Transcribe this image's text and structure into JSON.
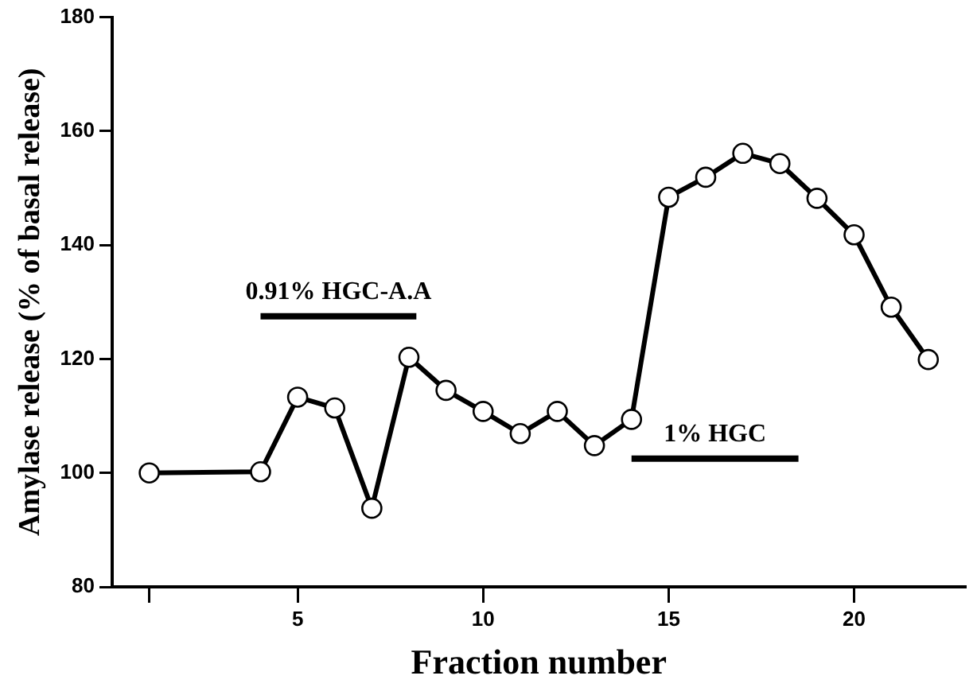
{
  "chart_data": {
    "type": "line",
    "xlabel": "Fraction number",
    "ylabel": "Amylase release (% of basal release)",
    "x": [
      1,
      4,
      5,
      6,
      7,
      8,
      9,
      10,
      11,
      12,
      13,
      14,
      15,
      16,
      17,
      18,
      19,
      20,
      21,
      22
    ],
    "series": [
      {
        "color": "#000000",
        "values": [
          100,
          100.2,
          113.3,
          111.4,
          93.8,
          120.3,
          114.5,
          110.8,
          106.9,
          110.8,
          104.8,
          109.4,
          148.4,
          151.9,
          156.1,
          154.3,
          148.2,
          141.8,
          129.1,
          119.9
        ]
      },
      {
        "name": "0.91% HGC-A.A",
        "color": "#000000",
        "marker": "none",
        "x": [
          4,
          8.2
        ],
        "values": [
          127.5,
          127.5
        ]
      },
      {
        "name": "1% HGC",
        "color": "#000000",
        "marker": "none",
        "x": [
          14,
          18.5
        ],
        "values": [
          102.5,
          102.5
        ]
      }
    ],
    "xlim": [
      0,
      23
    ],
    "xticks": [
      {
        "value": 1,
        "label": null
      },
      5,
      10,
      15,
      20
    ],
    "ylim": [
      80,
      180
    ],
    "yticks": [
      80,
      100,
      120,
      140,
      160,
      180
    ],
    "grid": false,
    "legend": false,
    "marker": "circle",
    "line_style": "solid"
  }
}
